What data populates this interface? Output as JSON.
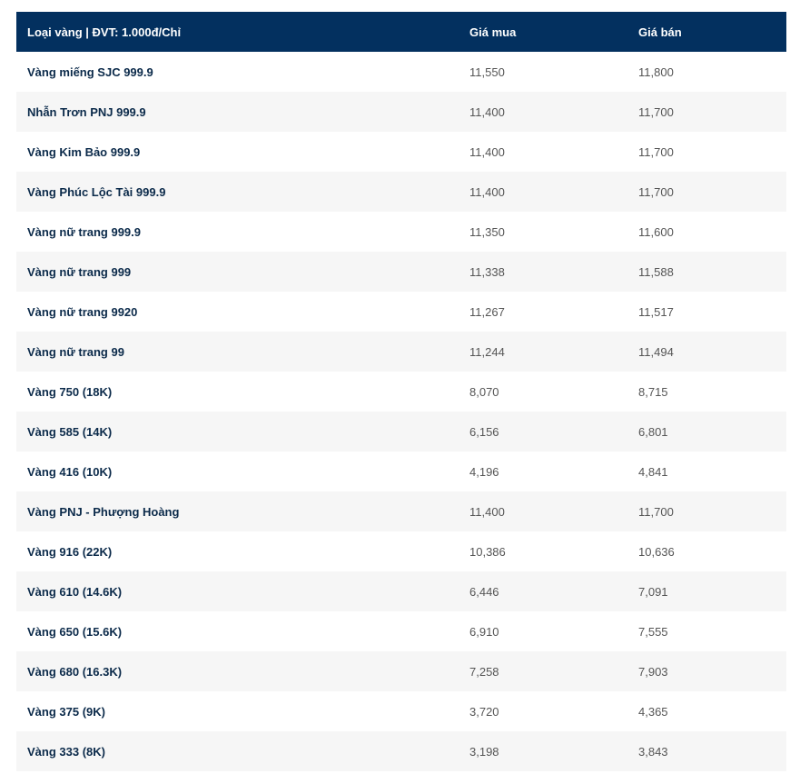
{
  "table": {
    "headers": {
      "type": "Loại vàng | ĐVT: 1.000đ/Chỉ",
      "buy": "Giá mua",
      "sell": "Giá bán"
    },
    "rows": [
      {
        "name": "Vàng miếng SJC 999.9",
        "buy": "11,550",
        "sell": "11,800"
      },
      {
        "name": "Nhẫn Trơn PNJ 999.9",
        "buy": "11,400",
        "sell": "11,700"
      },
      {
        "name": "Vàng Kim Bảo 999.9",
        "buy": "11,400",
        "sell": "11,700"
      },
      {
        "name": "Vàng Phúc Lộc Tài 999.9",
        "buy": "11,400",
        "sell": "11,700"
      },
      {
        "name": "Vàng nữ trang 999.9",
        "buy": "11,350",
        "sell": "11,600"
      },
      {
        "name": "Vàng nữ trang 999",
        "buy": "11,338",
        "sell": "11,588"
      },
      {
        "name": "Vàng nữ trang 9920",
        "buy": "11,267",
        "sell": "11,517"
      },
      {
        "name": "Vàng nữ trang 99",
        "buy": "11,244",
        "sell": "11,494"
      },
      {
        "name": "Vàng 750 (18K)",
        "buy": "8,070",
        "sell": "8,715"
      },
      {
        "name": "Vàng 585 (14K)",
        "buy": "6,156",
        "sell": "6,801"
      },
      {
        "name": "Vàng 416 (10K)",
        "buy": "4,196",
        "sell": "4,841"
      },
      {
        "name": "Vàng PNJ - Phượng Hoàng",
        "buy": "11,400",
        "sell": "11,700"
      },
      {
        "name": "Vàng 916 (22K)",
        "buy": "10,386",
        "sell": "10,636"
      },
      {
        "name": "Vàng 610 (14.6K)",
        "buy": "6,446",
        "sell": "7,091"
      },
      {
        "name": "Vàng 650 (15.6K)",
        "buy": "6,910",
        "sell": "7,555"
      },
      {
        "name": "Vàng 680 (16.3K)",
        "buy": "7,258",
        "sell": "7,903"
      },
      {
        "name": "Vàng 375 (9K)",
        "buy": "3,720",
        "sell": "4,365"
      },
      {
        "name": "Vàng 333 (8K)",
        "buy": "3,198",
        "sell": "3,843"
      }
    ]
  },
  "colors": {
    "header_bg": "#03305f",
    "header_text": "#ffffff",
    "row_alt_bg": "#f6f6f6",
    "name_text": "#0b2a4a",
    "value_text": "#555555"
  }
}
